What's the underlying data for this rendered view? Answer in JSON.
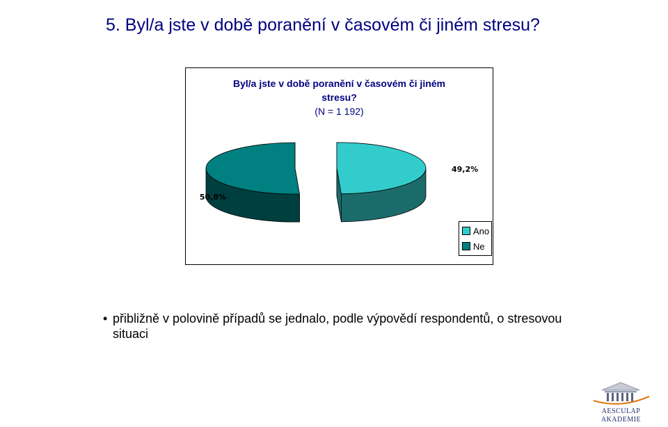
{
  "slide": {
    "title": "5. Byl/a jste v době poranění v časovém či jiném stresu?",
    "bullet": "přibližně v polovině případů se jednalo, podle výpovědí respondentů, o stresovou situaci"
  },
  "chart_data": {
    "type": "pie",
    "title_line1": "Byl/a jste v době poranění v časovém či jiném",
    "title_line2": "stresu?",
    "subtitle": "(N = 1 192)",
    "categories": [
      "Ano",
      "Ne"
    ],
    "values": [
      49.2,
      50.8
    ],
    "data_labels": [
      "49,2%",
      "50,8%"
    ],
    "colors": [
      "#33CCCC",
      "#008080"
    ],
    "side_colors": [
      "#1C6B6B",
      "#003F3F"
    ],
    "legend": "right-bottom",
    "exploded": true,
    "three_d": true
  },
  "logo": {
    "line1": "AESCULAP",
    "line2": "AKADEMIE"
  }
}
